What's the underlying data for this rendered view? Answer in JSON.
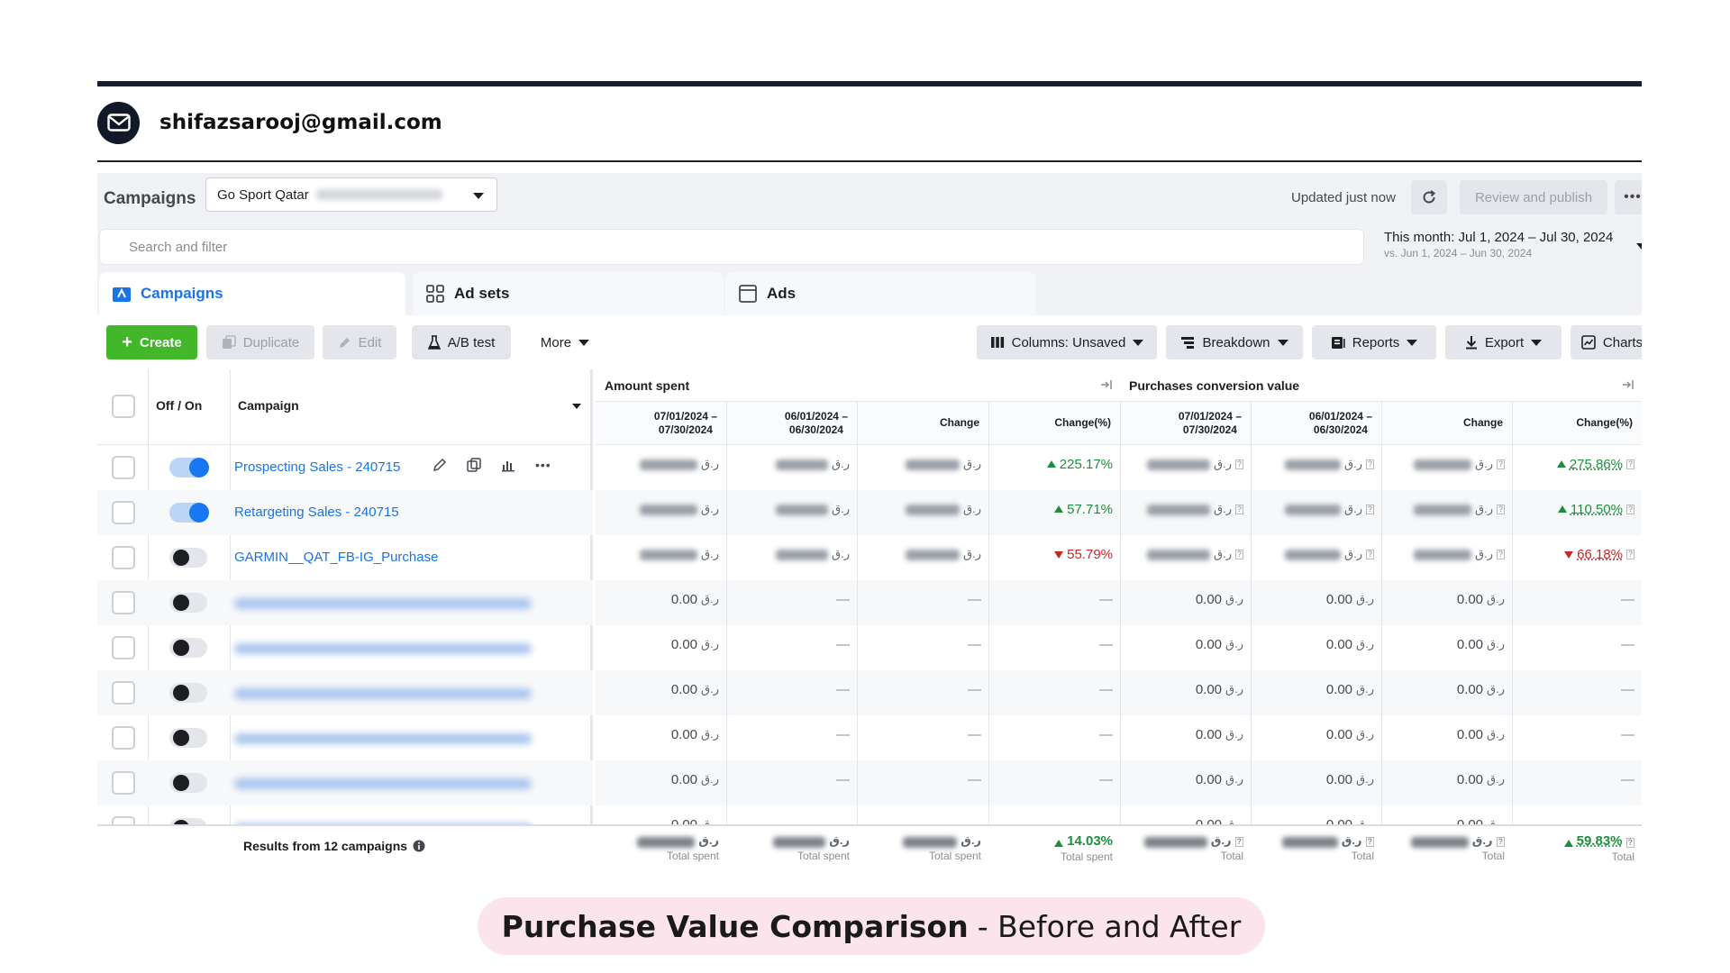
{
  "email": "shifazsarooj@gmail.com",
  "header": {
    "title": "Campaigns",
    "account": "Go Sport Qatar",
    "updated": "Updated just now",
    "review_publish": "Review and publish",
    "more": "•••"
  },
  "search": {
    "placeholder": "Search and filter"
  },
  "date_range": {
    "main": "This month: Jul 1, 2024 – Jul 30, 2024",
    "compare": "vs. Jun 1, 2024 – Jun 30, 2024"
  },
  "tabs": [
    {
      "label": "Campaigns"
    },
    {
      "label": "Ad sets"
    },
    {
      "label": "Ads"
    }
  ],
  "toolbar": {
    "create": "Create",
    "duplicate": "Duplicate",
    "edit": "Edit",
    "ab_test": "A/B test",
    "more": "More",
    "columns": "Columns: Unsaved",
    "breakdown": "Breakdown",
    "reports": "Reports",
    "export": "Export",
    "charts": "Charts"
  },
  "table": {
    "col_offon": "Off / On",
    "col_campaign": "Campaign",
    "group_amount": "Amount spent",
    "group_purchases": "Purchases conversion value",
    "subcols": [
      "07/01/2024 –\n07/30/2024",
      "06/01/2024 –\n06/30/2024",
      "Change",
      "Change(%)"
    ],
    "currency": "ر.ق",
    "zero": "0.00",
    "dash": "—",
    "rows": [
      {
        "name": "Prospecting Sales - 240715",
        "on": true,
        "spent_change_pct": "225.17%",
        "spent_dir": "up",
        "pv_change_pct": "275.86%",
        "pv_dir": "up"
      },
      {
        "name": "Retargeting Sales - 240715",
        "on": true,
        "spent_change_pct": "57.71%",
        "spent_dir": "up",
        "pv_change_pct": "110.50%",
        "pv_dir": "up"
      },
      {
        "name": "GARMIN__QAT_FB-IG_Purchase",
        "on": false,
        "spent_change_pct": "55.79%",
        "spent_dir": "down",
        "pv_change_pct": "66.18%",
        "pv_dir": "down"
      }
    ],
    "blurred_rows": 6,
    "totals": {
      "label": "Results from 12 campaigns",
      "spent_change_pct": "14.03%",
      "pv_change_pct": "59.83%",
      "sub_spent": "Total spent",
      "sub_total": "Total"
    }
  },
  "caption": {
    "bold": "Purchase Value Comparison",
    "rest": "- Before and After"
  },
  "colors": {
    "accent": "#1b74e4",
    "create": "#42b72a",
    "up": "#1e8e3e",
    "down": "#c62828",
    "caption_bg": "#fce4ec"
  }
}
